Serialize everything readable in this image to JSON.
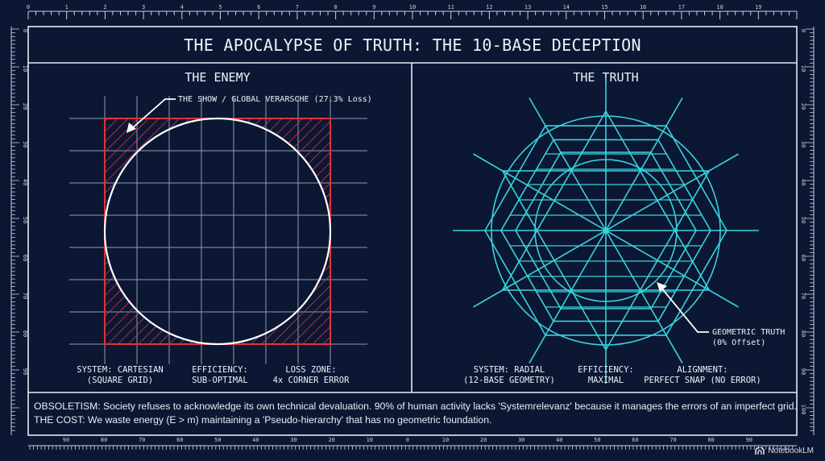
{
  "title": "THE APOCALYPSE OF TRUTH: THE 10-BASE DECEPTION",
  "left_panel": {
    "heading": "THE ENEMY",
    "callout": "THE SHOW / GLOBAL VERARSCHE (27.3% Loss)",
    "captions": [
      {
        "line1": "SYSTEM: CARTESIAN",
        "line2": "(SQUARE GRID)"
      },
      {
        "line1": "EFFICIENCY:",
        "line2": "SUB-OPTIMAL"
      },
      {
        "line1": "LOSS ZONE:",
        "line2": "4x CORNER ERROR"
      }
    ]
  },
  "right_panel": {
    "heading": "THE TRUTH",
    "callout_line1": "GEOMETRIC TRUTH",
    "callout_line2": "(0% Offset)",
    "captions": [
      {
        "line1": "SYSTEM: RADIAL",
        "line2": "(12-BASE GEOMETRY)"
      },
      {
        "line1": "EFFICIENCY:",
        "line2": "MAXIMAL"
      },
      {
        "line1": "ALIGNMENT:",
        "line2": "PERFECT SNAP (NO ERROR)"
      }
    ]
  },
  "footer": {
    "line1": "OBSOLETISM: Society refuses to acknowledge its own technical devaluation. 90% of human activity lacks 'Systemrelevanz' because it manages the errors of an imperfect grid.",
    "line2": "THE COST: We waste energy (E > m) maintaining a 'Pseudo-hierarchy' that has no geometric foundation."
  },
  "rulers": {
    "top": [
      "0",
      "1",
      "2",
      "3",
      "4",
      "5",
      "6",
      "7",
      "8",
      "9",
      "10",
      "11",
      "12",
      "13",
      "14",
      "15",
      "16",
      "17",
      "18",
      "19"
    ],
    "bottom": [
      "90",
      "80",
      "70",
      "60",
      "50",
      "40",
      "30",
      "20",
      "10",
      "0",
      "10",
      "20",
      "30",
      "40",
      "50",
      "60",
      "70",
      "80",
      "90"
    ],
    "left": [
      "0",
      "10",
      "20",
      "30",
      "40",
      "50",
      "60",
      "70",
      "80",
      "90"
    ],
    "right": [
      "0",
      "10",
      "20",
      "30",
      "40",
      "50",
      "60",
      "70",
      "80",
      "90",
      "100"
    ]
  },
  "brand": "NotebookLM",
  "colors": {
    "background": "#0b1733",
    "line": "#e6ecf5",
    "grid": "#8f9db6",
    "enemy_red": "#e0323c",
    "truth_cyan": "#39d3de"
  }
}
